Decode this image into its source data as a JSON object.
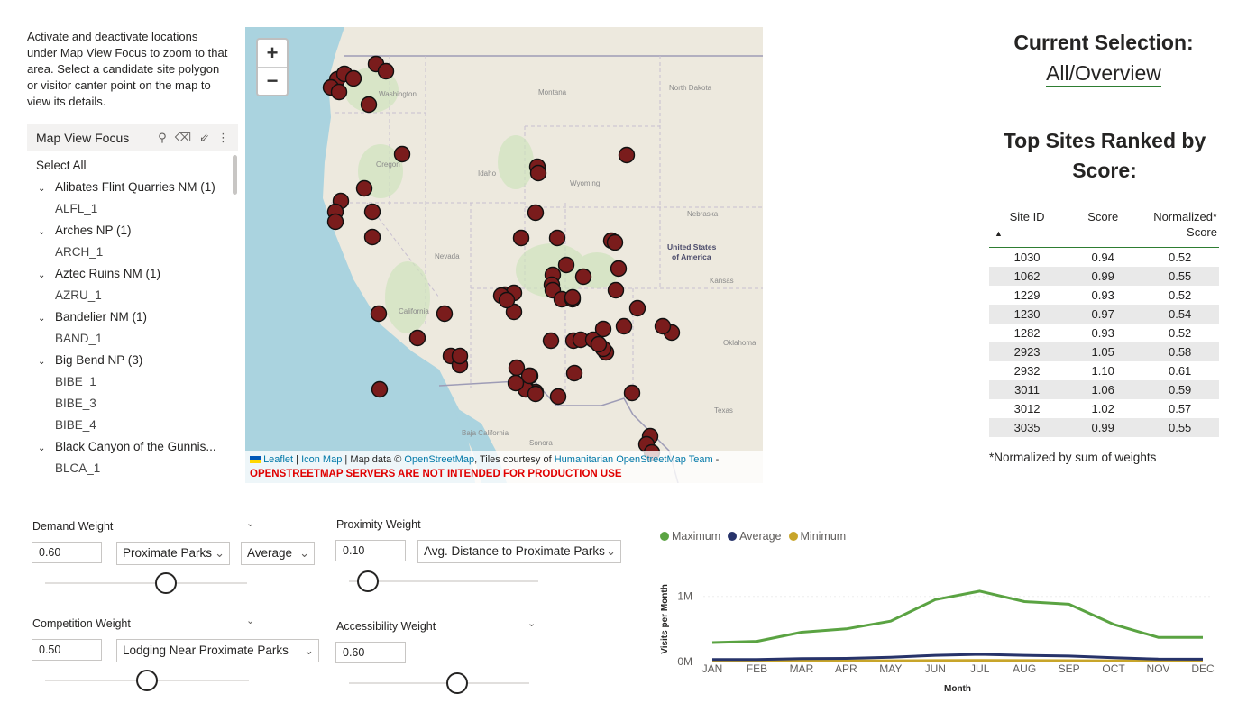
{
  "instructions": "Activate and deactivate locations under Map View Focus to zoom to that area. Select a candidate site polygon or visitor canter point on the map to view its details.",
  "slicer": {
    "title": "Map View Focus",
    "icons": [
      "search-icon",
      "eraser-icon",
      "collapse-icon",
      "more-options-icon"
    ],
    "select_all": "Select All",
    "groups": [
      {
        "label": "Alibates Flint Quarries NM (1)",
        "children": [
          "ALFL_1"
        ]
      },
      {
        "label": "Arches NP (1)",
        "children": [
          "ARCH_1"
        ]
      },
      {
        "label": "Aztec Ruins NM (1)",
        "children": [
          "AZRU_1"
        ]
      },
      {
        "label": "Bandelier NM (1)",
        "children": [
          "BAND_1"
        ]
      },
      {
        "label": "Big Bend NP (3)",
        "children": [
          "BIBE_1",
          "BIBE_3",
          "BIBE_4"
        ]
      },
      {
        "label": "Black Canyon of the Gunnis...",
        "children": [
          "BLCA_1"
        ]
      }
    ]
  },
  "map": {
    "zoom_in": "+",
    "zoom_out": "−",
    "labels": {
      "washington": "Washington",
      "montana": "Montana",
      "north_dakota": "North Dakota",
      "oregon": "Oregon",
      "idaho": "Idaho",
      "wyoming": "Wyoming",
      "nebraska": "Nebraska",
      "nevada": "Nevada",
      "usa1": "United States",
      "usa2": "of America",
      "california": "California",
      "kansas": "Kansas",
      "oklahoma": "Oklahoma",
      "texas": "Texas",
      "baja": "Baja California",
      "sonora": "Sonora"
    },
    "attribution": {
      "leaflet": "Leaflet",
      "icon_map": "Icon Map",
      "mapdata": "Map data ©",
      "osm": "OpenStreetMap",
      "tiles": ", Tiles courtesy of",
      "hot": "Humanitarian OpenStreetMap Team",
      "dash": "-",
      "warning": "OPENSTREETMAP SERVERS ARE NOT INTENDED FOR PRODUCTION USE"
    },
    "marker_color": "#7a1c1c"
  },
  "current_selection": {
    "title": "Current Selection:",
    "value": "All/Overview"
  },
  "top_sites": {
    "title": "Top Sites Ranked by Score:",
    "columns": [
      "Site ID",
      "Score",
      "Normalized* Score"
    ],
    "rows": [
      [
        "1030",
        "0.94",
        "0.52"
      ],
      [
        "1062",
        "0.99",
        "0.55"
      ],
      [
        "1229",
        "0.93",
        "0.52"
      ],
      [
        "1230",
        "0.97",
        "0.54"
      ],
      [
        "1282",
        "0.93",
        "0.52"
      ],
      [
        "2923",
        "1.05",
        "0.58"
      ],
      [
        "2932",
        "1.10",
        "0.61"
      ],
      [
        "3011",
        "1.06",
        "0.59"
      ],
      [
        "3012",
        "1.02",
        "0.57"
      ],
      [
        "3035",
        "0.99",
        "0.55"
      ]
    ],
    "footnote": "*Normalized by sum of weights"
  },
  "controls": {
    "demand": {
      "label": "Demand Weight",
      "value": "0.60",
      "dropdown1": "Proximate Parks",
      "dropdown2": "Average",
      "slider_fraction": 0.6
    },
    "proximity": {
      "label": "Proximity Weight",
      "value": "0.10",
      "dropdown1": "Avg. Distance to Proximate Parks",
      "slider_fraction": 0.1
    },
    "competition": {
      "label": "Competition Weight",
      "value": "0.50",
      "dropdown1": "Lodging Near Proximate Parks",
      "slider_fraction": 0.5
    },
    "accessibility": {
      "label": "Accessibility Weight",
      "value": "0.60",
      "slider_fraction": 0.6
    }
  },
  "chart_data": {
    "type": "line",
    "title": "",
    "xlabel": "Month",
    "ylabel": "Visits per Month",
    "categories": [
      "JAN",
      "FEB",
      "MAR",
      "APR",
      "MAY",
      "JUN",
      "JUL",
      "AUG",
      "SEP",
      "OCT",
      "NOV",
      "DEC"
    ],
    "y_ticks": [
      "0M",
      "1M"
    ],
    "ylim": [
      0,
      1300000
    ],
    "legend_position": "top-left",
    "series": [
      {
        "name": "Maximum",
        "color": "#5aa342",
        "values": [
          290000,
          310000,
          450000,
          500000,
          620000,
          950000,
          1080000,
          920000,
          880000,
          570000,
          370000,
          370000
        ]
      },
      {
        "name": "Average",
        "color": "#27336a",
        "values": [
          30000,
          32000,
          45000,
          48000,
          65000,
          95000,
          110000,
          95000,
          85000,
          60000,
          38000,
          36000
        ]
      },
      {
        "name": "Minimum",
        "color": "#c8a52a",
        "values": [
          8000,
          8000,
          10000,
          10000,
          12000,
          15000,
          18000,
          15000,
          14000,
          11000,
          9000,
          9000
        ]
      }
    ]
  }
}
